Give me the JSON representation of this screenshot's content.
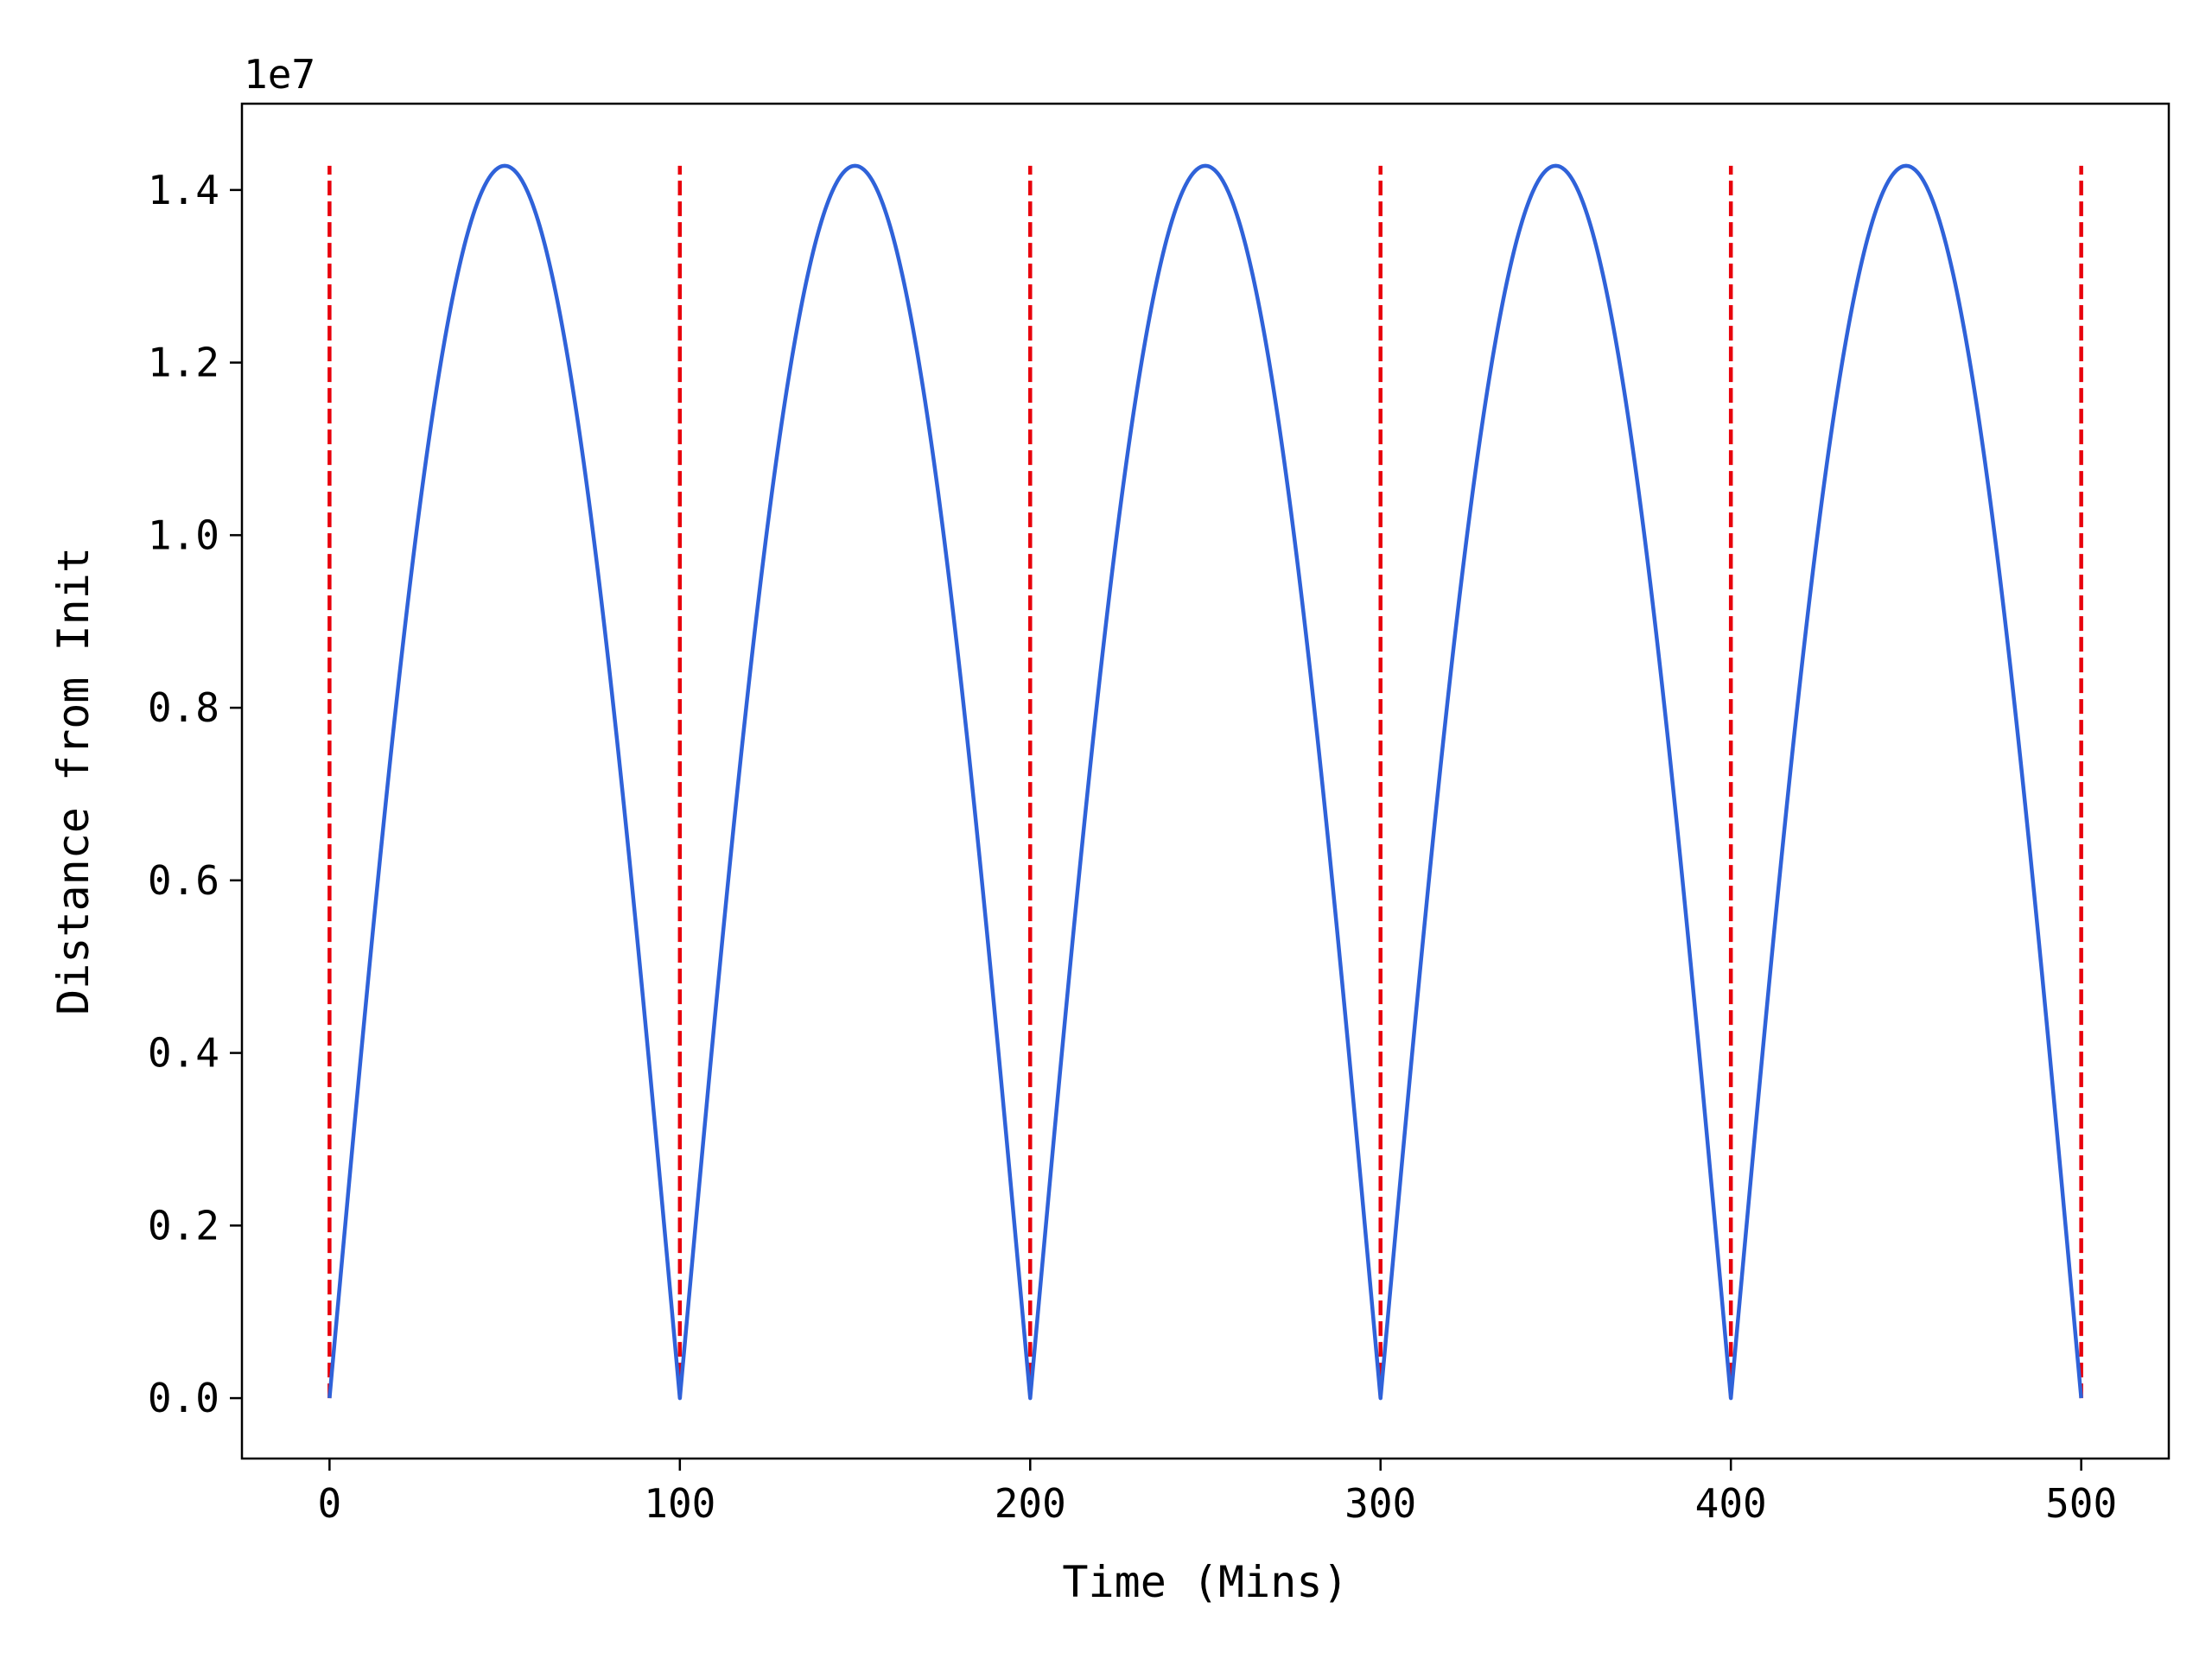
{
  "chart_data": {
    "type": "line",
    "xlabel": "Time (Mins)",
    "ylabel": "Distance from Init",
    "y_offset_text": "1e7",
    "xlim": [
      -25,
      525
    ],
    "ylim": [
      -0.07,
      1.5
    ],
    "x_ticks": [
      0,
      100,
      200,
      300,
      400,
      500
    ],
    "x_tick_labels": [
      "0",
      "100",
      "200",
      "300",
      "400",
      "500"
    ],
    "y_ticks": [
      0.0,
      0.2,
      0.4,
      0.6,
      0.8,
      1.0,
      1.2,
      1.4
    ],
    "y_tick_labels": [
      "0.0",
      "0.2",
      "0.4",
      "0.6",
      "0.8",
      "1.0",
      "1.2",
      "1.4"
    ],
    "grid": false,
    "series": [
      {
        "color": "#2f62d9",
        "style": "solid",
        "period": 100,
        "peak": 1.428,
        "x": [
          0,
          10,
          20,
          25,
          30,
          40,
          50,
          60,
          70,
          75,
          80,
          90,
          100,
          110,
          120,
          125,
          130,
          140,
          150,
          160,
          170,
          175,
          180,
          190,
          200,
          210,
          220,
          225,
          230,
          240,
          250,
          260,
          270,
          275,
          280,
          290,
          300,
          310,
          320,
          325,
          330,
          340,
          350,
          360,
          370,
          375,
          380,
          390,
          400,
          410,
          420,
          425,
          430,
          440,
          450,
          460,
          470,
          475,
          480,
          490,
          500
        ],
        "y": [
          0.0,
          0.441,
          0.839,
          1.01,
          1.155,
          1.358,
          1.428,
          1.358,
          1.155,
          1.01,
          0.839,
          0.441,
          0.0,
          0.441,
          0.839,
          1.01,
          1.155,
          1.358,
          1.428,
          1.358,
          1.155,
          1.01,
          0.839,
          0.441,
          0.0,
          0.441,
          0.839,
          1.01,
          1.155,
          1.358,
          1.428,
          1.358,
          1.155,
          1.01,
          0.839,
          0.441,
          0.0,
          0.441,
          0.839,
          1.01,
          1.155,
          1.358,
          1.428,
          1.358,
          1.155,
          1.01,
          0.839,
          0.441,
          0.0,
          0.441,
          0.839,
          1.01,
          1.155,
          1.358,
          1.428,
          1.358,
          1.155,
          1.01,
          0.839,
          0.441,
          0.0
        ]
      }
    ],
    "vlines": {
      "x": [
        0,
        100,
        200,
        300,
        400,
        500
      ],
      "ymin": 0.0,
      "ymax": 1.428,
      "color": "#e8000b",
      "style": "dashed"
    }
  }
}
